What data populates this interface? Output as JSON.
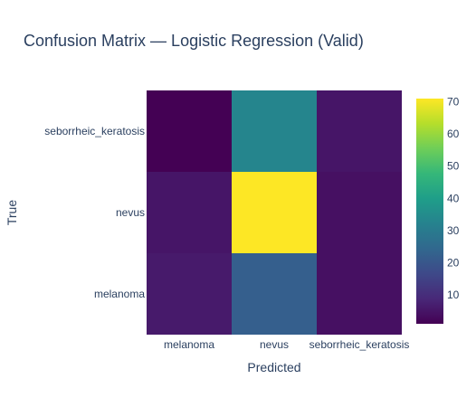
{
  "chart_data": {
    "type": "heatmap",
    "title": "Confusion Matrix — Logistic Regression (Valid)",
    "xlabel": "Predicted",
    "ylabel": "True",
    "x_categories": [
      "melanoma",
      "nevus",
      "seborrheic_keratosis"
    ],
    "y_categories": [
      "melanoma",
      "nevus",
      "seborrheic_keratosis"
    ],
    "z": [
      [
        6,
        22,
        4
      ],
      [
        5,
        71,
        4
      ],
      [
        1,
        33,
        5
      ]
    ],
    "colorscale": "Viridis",
    "zlim": [
      1,
      71
    ],
    "colorbar_ticks": [
      10,
      20,
      30,
      40,
      50,
      60,
      70
    ],
    "legend": "colorbar right"
  }
}
